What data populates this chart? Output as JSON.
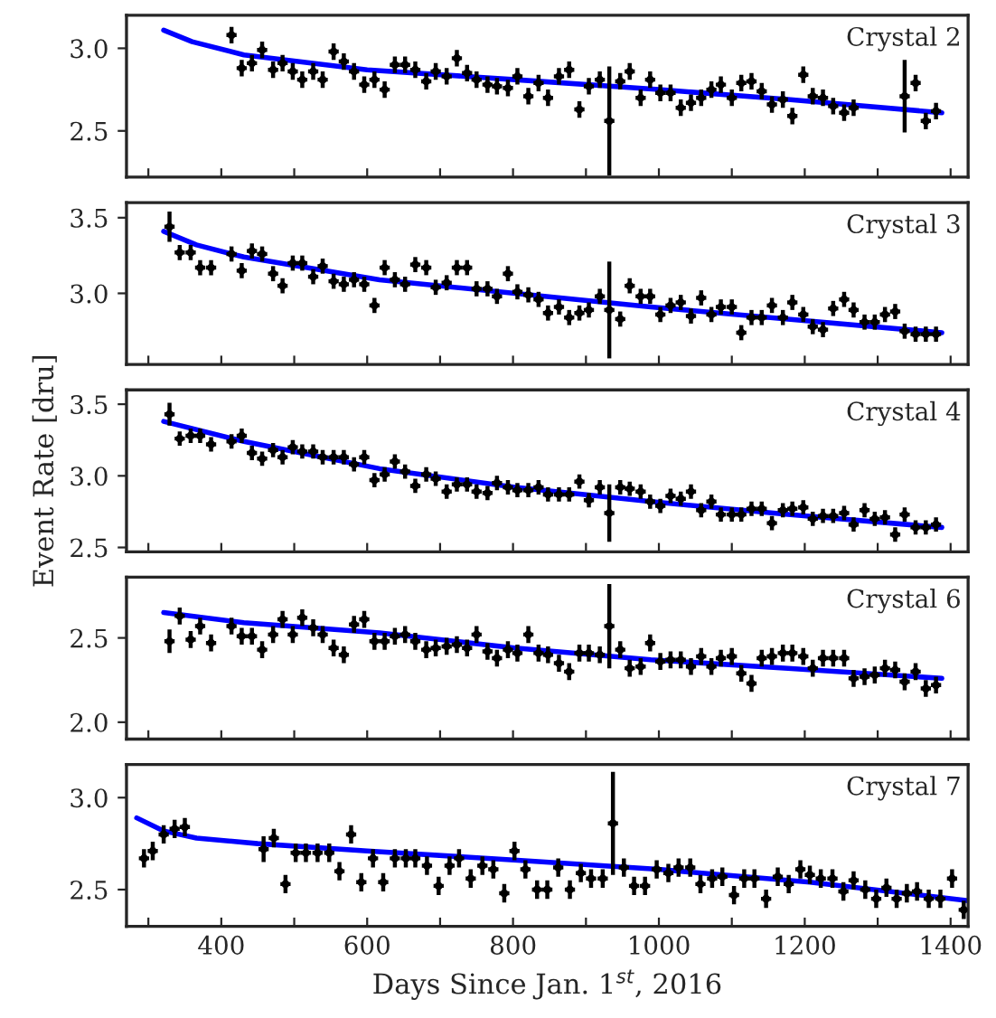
{
  "chart_data": [
    {
      "type": "scatter",
      "annotations": [
        "Crystal 2"
      ],
      "xlim": [
        270,
        1424
      ],
      "ylim": [
        2.22,
        3.2
      ],
      "yticks": [
        {
          "value": 2.5,
          "label": "2.5"
        },
        {
          "value": 3.0,
          "label": "3.0"
        }
      ],
      "xticks": [
        300,
        400,
        500,
        600,
        700,
        800,
        900,
        1000,
        1100,
        1200,
        1300,
        1400
      ],
      "tick_labels": "y",
      "grid": false,
      "series": [
        {
          "type": "scatter",
          "color": "#000000",
          "marker": "circle",
          "x": [
            414,
            428,
            442,
            456,
            471,
            484,
            498,
            511,
            526,
            539,
            554,
            568,
            582,
            596,
            610,
            624,
            638,
            652,
            666,
            681,
            694,
            709,
            723,
            737,
            750,
            765,
            778,
            793,
            806,
            821,
            835,
            848,
            863,
            877,
            891,
            904,
            919,
            932,
            947,
            960,
            975,
            988,
            1002,
            1016,
            1030,
            1044,
            1058,
            1072,
            1085,
            1100,
            1113,
            1127,
            1141,
            1155,
            1170,
            1183,
            1198,
            1211,
            1225,
            1239,
            1254,
            1267,
            1337,
            1352,
            1366,
            1380
          ],
          "values": [
            3.08,
            2.88,
            2.91,
            2.99,
            2.87,
            2.91,
            2.86,
            2.81,
            2.86,
            2.81,
            2.98,
            2.92,
            2.86,
            2.78,
            2.81,
            2.75,
            2.9,
            2.9,
            2.87,
            2.8,
            2.86,
            2.83,
            2.94,
            2.85,
            2.81,
            2.78,
            2.77,
            2.76,
            2.83,
            2.71,
            2.79,
            2.7,
            2.83,
            2.87,
            2.63,
            2.77,
            2.81,
            2.56,
            2.8,
            2.86,
            2.7,
            2.81,
            2.73,
            2.73,
            2.64,
            2.67,
            2.7,
            2.75,
            2.78,
            2.7,
            2.79,
            2.8,
            2.74,
            2.66,
            2.69,
            2.59,
            2.84,
            2.71,
            2.7,
            2.65,
            2.61,
            2.64,
            2.71,
            2.79,
            2.56,
            2.62
          ],
          "errors": [
            0.05,
            0.05,
            0.05,
            0.05,
            0.05,
            0.05,
            0.05,
            0.05,
            0.05,
            0.05,
            0.05,
            0.05,
            0.05,
            0.05,
            0.05,
            0.05,
            0.05,
            0.05,
            0.05,
            0.05,
            0.05,
            0.05,
            0.05,
            0.05,
            0.05,
            0.05,
            0.05,
            0.05,
            0.05,
            0.05,
            0.05,
            0.05,
            0.05,
            0.05,
            0.05,
            0.05,
            0.05,
            0.33,
            0.05,
            0.05,
            0.05,
            0.05,
            0.05,
            0.05,
            0.05,
            0.05,
            0.05,
            0.05,
            0.05,
            0.05,
            0.05,
            0.05,
            0.05,
            0.05,
            0.05,
            0.05,
            0.05,
            0.05,
            0.05,
            0.05,
            0.05,
            0.05,
            0.22,
            0.05,
            0.05,
            0.05
          ],
          "xerrors": [
            7,
            7,
            7,
            7,
            7,
            7,
            7,
            7,
            7,
            7,
            7,
            7,
            7,
            7,
            7,
            7,
            7,
            7,
            7,
            7,
            7,
            7,
            7,
            7,
            7,
            7,
            7,
            7,
            7,
            7,
            7,
            7,
            7,
            7,
            7,
            7,
            7,
            7,
            7,
            7,
            7,
            7,
            7,
            7,
            7,
            7,
            7,
            7,
            7,
            7,
            7,
            7,
            7,
            7,
            7,
            7,
            7,
            7,
            7,
            7,
            7,
            7,
            7,
            7,
            7,
            7
          ]
        },
        {
          "type": "line",
          "color": "#0000ff",
          "line_style": "solid",
          "x": [
            321,
            360,
            431,
            600,
            803,
            1000,
            1177,
            1388
          ],
          "values": [
            3.11,
            3.04,
            2.96,
            2.87,
            2.81,
            2.75,
            2.69,
            2.61
          ]
        }
      ]
    },
    {
      "type": "scatter",
      "annotations": [
        "Crystal 3"
      ],
      "xlim": [
        270,
        1424
      ],
      "ylim": [
        2.53,
        3.6
      ],
      "yticks": [
        {
          "value": 3.0,
          "label": "3.0"
        },
        {
          "value": 3.5,
          "label": "3.5"
        }
      ],
      "xticks": [
        300,
        400,
        500,
        600,
        700,
        800,
        900,
        1000,
        1100,
        1200,
        1300,
        1400
      ],
      "tick_labels": "y",
      "grid": false,
      "series": [
        {
          "type": "scatter",
          "color": "#000000",
          "marker": "circle",
          "x": [
            329,
            343,
            358,
            371,
            386,
            414,
            428,
            442,
            456,
            471,
            484,
            498,
            511,
            526,
            539,
            554,
            568,
            582,
            596,
            610,
            624,
            638,
            652,
            666,
            681,
            694,
            709,
            723,
            737,
            750,
            765,
            778,
            793,
            806,
            821,
            835,
            848,
            863,
            877,
            891,
            904,
            919,
            932,
            947,
            960,
            975,
            988,
            1002,
            1016,
            1030,
            1044,
            1058,
            1072,
            1085,
            1100,
            1113,
            1127,
            1141,
            1155,
            1170,
            1183,
            1198,
            1211,
            1225,
            1239,
            1254,
            1267,
            1282,
            1296,
            1310,
            1324,
            1337,
            1352,
            1366,
            1380
          ],
          "values": [
            3.44,
            3.27,
            3.27,
            3.17,
            3.17,
            3.26,
            3.15,
            3.28,
            3.26,
            3.13,
            3.05,
            3.2,
            3.2,
            3.11,
            3.18,
            3.08,
            3.06,
            3.09,
            3.06,
            2.92,
            3.17,
            3.09,
            3.06,
            3.19,
            3.17,
            3.04,
            3.07,
            3.17,
            3.17,
            3.03,
            3.03,
            2.98,
            3.13,
            3.01,
            2.99,
            2.96,
            2.87,
            2.91,
            2.84,
            2.87,
            2.89,
            2.98,
            2.89,
            2.83,
            3.05,
            2.98,
            2.98,
            2.86,
            2.92,
            2.94,
            2.85,
            2.97,
            2.86,
            2.91,
            2.91,
            2.74,
            2.84,
            2.84,
            2.92,
            2.84,
            2.94,
            2.86,
            2.78,
            2.76,
            2.9,
            2.96,
            2.89,
            2.81,
            2.81,
            2.86,
            2.88,
            2.75,
            2.73,
            2.73,
            2.73
          ],
          "errors": [
            0.1,
            0.05,
            0.05,
            0.05,
            0.05,
            0.05,
            0.05,
            0.05,
            0.05,
            0.05,
            0.05,
            0.05,
            0.05,
            0.05,
            0.05,
            0.05,
            0.05,
            0.05,
            0.05,
            0.05,
            0.05,
            0.05,
            0.05,
            0.05,
            0.05,
            0.05,
            0.05,
            0.05,
            0.05,
            0.05,
            0.05,
            0.05,
            0.05,
            0.05,
            0.05,
            0.05,
            0.05,
            0.05,
            0.05,
            0.05,
            0.05,
            0.05,
            0.32,
            0.05,
            0.05,
            0.05,
            0.05,
            0.05,
            0.05,
            0.05,
            0.05,
            0.05,
            0.05,
            0.05,
            0.05,
            0.05,
            0.05,
            0.05,
            0.05,
            0.05,
            0.05,
            0.05,
            0.05,
            0.05,
            0.05,
            0.05,
            0.05,
            0.05,
            0.05,
            0.05,
            0.05,
            0.05,
            0.05,
            0.05,
            0.05
          ],
          "xerrors": [
            7,
            7,
            7,
            7,
            7,
            7,
            7,
            7,
            7,
            7,
            7,
            7,
            7,
            7,
            7,
            7,
            7,
            7,
            7,
            7,
            7,
            7,
            7,
            7,
            7,
            7,
            7,
            7,
            7,
            7,
            7,
            7,
            7,
            7,
            7,
            7,
            7,
            7,
            7,
            7,
            7,
            7,
            7,
            7,
            7,
            7,
            7,
            7,
            7,
            7,
            7,
            7,
            7,
            7,
            7,
            7,
            7,
            7,
            7,
            7,
            7,
            7,
            7,
            7,
            7,
            7,
            7,
            7,
            7,
            7,
            7,
            7,
            7,
            7,
            7
          ]
        },
        {
          "type": "line",
          "color": "#0000ff",
          "line_style": "solid",
          "x": [
            321,
            366,
            431,
            617,
            803,
            989,
            1177,
            1388
          ],
          "values": [
            3.41,
            3.32,
            3.24,
            3.09,
            3.0,
            2.91,
            2.83,
            2.74
          ]
        }
      ]
    },
    {
      "type": "scatter",
      "annotations": [
        "Crystal 4"
      ],
      "ylabel": "Event Rate [dru]",
      "xlim": [
        270,
        1424
      ],
      "ylim": [
        2.47,
        3.6
      ],
      "yticks": [
        {
          "value": 2.5,
          "label": "2.5"
        },
        {
          "value": 3.0,
          "label": "3.0"
        },
        {
          "value": 3.5,
          "label": "3.5"
        }
      ],
      "xticks": [
        300,
        400,
        500,
        600,
        700,
        800,
        900,
        1000,
        1100,
        1200,
        1300,
        1400
      ],
      "tick_labels": "y",
      "grid": false,
      "series": [
        {
          "type": "scatter",
          "color": "#000000",
          "marker": "circle",
          "x": [
            329,
            343,
            358,
            371,
            386,
            414,
            428,
            442,
            456,
            471,
            484,
            498,
            511,
            526,
            539,
            554,
            568,
            582,
            596,
            610,
            624,
            638,
            652,
            666,
            681,
            694,
            709,
            723,
            737,
            750,
            765,
            778,
            793,
            806,
            821,
            835,
            848,
            863,
            877,
            891,
            904,
            919,
            932,
            947,
            960,
            975,
            988,
            1002,
            1016,
            1030,
            1044,
            1058,
            1072,
            1085,
            1100,
            1113,
            1127,
            1141,
            1155,
            1170,
            1183,
            1198,
            1211,
            1225,
            1239,
            1254,
            1267,
            1282,
            1296,
            1310,
            1324,
            1337,
            1352,
            1366,
            1380
          ],
          "values": [
            3.43,
            3.26,
            3.28,
            3.28,
            3.22,
            3.24,
            3.28,
            3.16,
            3.12,
            3.18,
            3.13,
            3.2,
            3.17,
            3.17,
            3.13,
            3.13,
            3.13,
            3.08,
            3.13,
            2.97,
            3.01,
            3.1,
            3.03,
            2.93,
            3.01,
            2.98,
            2.89,
            2.94,
            2.94,
            2.89,
            2.88,
            2.95,
            2.92,
            2.9,
            2.9,
            2.92,
            2.87,
            2.87,
            2.87,
            2.96,
            2.83,
            2.92,
            2.74,
            2.92,
            2.91,
            2.89,
            2.82,
            2.79,
            2.86,
            2.84,
            2.89,
            2.76,
            2.82,
            2.73,
            2.73,
            2.73,
            2.77,
            2.77,
            2.67,
            2.76,
            2.77,
            2.78,
            2.7,
            2.72,
            2.72,
            2.74,
            2.66,
            2.76,
            2.7,
            2.71,
            2.59,
            2.73,
            2.64,
            2.64,
            2.66
          ],
          "errors": [
            0.08,
            0.05,
            0.05,
            0.05,
            0.05,
            0.05,
            0.05,
            0.05,
            0.05,
            0.05,
            0.05,
            0.05,
            0.05,
            0.05,
            0.05,
            0.05,
            0.05,
            0.05,
            0.05,
            0.05,
            0.05,
            0.05,
            0.05,
            0.05,
            0.05,
            0.05,
            0.05,
            0.05,
            0.05,
            0.05,
            0.05,
            0.05,
            0.05,
            0.05,
            0.05,
            0.05,
            0.05,
            0.05,
            0.05,
            0.05,
            0.05,
            0.05,
            0.2,
            0.05,
            0.05,
            0.05,
            0.05,
            0.05,
            0.05,
            0.05,
            0.05,
            0.05,
            0.05,
            0.05,
            0.05,
            0.05,
            0.05,
            0.05,
            0.05,
            0.05,
            0.05,
            0.05,
            0.05,
            0.05,
            0.05,
            0.05,
            0.05,
            0.05,
            0.05,
            0.05,
            0.05,
            0.05,
            0.05,
            0.05,
            0.05
          ],
          "xerrors": [
            7,
            7,
            7,
            7,
            7,
            7,
            7,
            7,
            7,
            7,
            7,
            7,
            7,
            7,
            7,
            7,
            7,
            7,
            7,
            7,
            7,
            7,
            7,
            7,
            7,
            7,
            7,
            7,
            7,
            7,
            7,
            7,
            7,
            7,
            7,
            7,
            7,
            7,
            7,
            7,
            7,
            7,
            7,
            7,
            7,
            7,
            7,
            7,
            7,
            7,
            7,
            7,
            7,
            7,
            7,
            7,
            7,
            7,
            7,
            7,
            7,
            7,
            7,
            7,
            7,
            7,
            7,
            7,
            7,
            7,
            7,
            7,
            7,
            7,
            7
          ]
        },
        {
          "type": "line",
          "color": "#0000ff",
          "line_style": "solid",
          "x": [
            321,
            431,
            617,
            803,
            989,
            1177,
            1388
          ],
          "values": [
            3.38,
            3.24,
            3.05,
            2.92,
            2.82,
            2.73,
            2.64
          ]
        }
      ]
    },
    {
      "type": "scatter",
      "annotations": [
        "Crystal 6"
      ],
      "xlim": [
        270,
        1424
      ],
      "ylim": [
        1.9,
        2.86
      ],
      "yticks": [
        {
          "value": 2.0,
          "label": "2.0"
        },
        {
          "value": 2.5,
          "label": "2.5"
        }
      ],
      "xticks": [
        300,
        400,
        500,
        600,
        700,
        800,
        900,
        1000,
        1100,
        1200,
        1300,
        1400
      ],
      "tick_labels": "y",
      "grid": false,
      "series": [
        {
          "type": "scatter",
          "color": "#000000",
          "marker": "circle",
          "x": [
            329,
            343,
            358,
            371,
            386,
            414,
            428,
            442,
            456,
            471,
            484,
            498,
            511,
            526,
            539,
            554,
            568,
            582,
            596,
            610,
            624,
            638,
            652,
            666,
            681,
            694,
            709,
            723,
            737,
            750,
            765,
            778,
            793,
            806,
            821,
            835,
            848,
            863,
            877,
            891,
            904,
            919,
            932,
            947,
            960,
            975,
            988,
            1002,
            1016,
            1030,
            1044,
            1058,
            1072,
            1085,
            1100,
            1113,
            1127,
            1141,
            1155,
            1170,
            1183,
            1198,
            1211,
            1225,
            1239,
            1254,
            1267,
            1282,
            1296,
            1310,
            1324,
            1337,
            1352,
            1366,
            1380
          ],
          "values": [
            2.48,
            2.63,
            2.49,
            2.57,
            2.47,
            2.57,
            2.51,
            2.51,
            2.43,
            2.52,
            2.61,
            2.52,
            2.62,
            2.56,
            2.52,
            2.44,
            2.4,
            2.58,
            2.61,
            2.48,
            2.48,
            2.51,
            2.52,
            2.48,
            2.43,
            2.44,
            2.45,
            2.46,
            2.44,
            2.52,
            2.42,
            2.38,
            2.43,
            2.41,
            2.52,
            2.41,
            2.4,
            2.35,
            2.3,
            2.41,
            2.41,
            2.4,
            2.57,
            2.43,
            2.32,
            2.33,
            2.47,
            2.36,
            2.37,
            2.37,
            2.33,
            2.39,
            2.33,
            2.38,
            2.39,
            2.29,
            2.23,
            2.38,
            2.39,
            2.41,
            2.41,
            2.39,
            2.32,
            2.38,
            2.38,
            2.38,
            2.26,
            2.27,
            2.28,
            2.32,
            2.31,
            2.24,
            2.3,
            2.2,
            2.22
          ],
          "errors": [
            0.07,
            0.05,
            0.05,
            0.05,
            0.05,
            0.05,
            0.05,
            0.05,
            0.05,
            0.05,
            0.05,
            0.05,
            0.05,
            0.05,
            0.05,
            0.05,
            0.05,
            0.05,
            0.05,
            0.05,
            0.05,
            0.05,
            0.05,
            0.05,
            0.05,
            0.05,
            0.05,
            0.05,
            0.05,
            0.05,
            0.05,
            0.05,
            0.05,
            0.05,
            0.05,
            0.05,
            0.05,
            0.05,
            0.05,
            0.05,
            0.05,
            0.05,
            0.25,
            0.05,
            0.05,
            0.05,
            0.05,
            0.05,
            0.05,
            0.05,
            0.05,
            0.05,
            0.05,
            0.05,
            0.05,
            0.05,
            0.05,
            0.05,
            0.05,
            0.05,
            0.05,
            0.05,
            0.05,
            0.05,
            0.05,
            0.05,
            0.05,
            0.05,
            0.05,
            0.05,
            0.05,
            0.05,
            0.05,
            0.05,
            0.05
          ],
          "xerrors": [
            7,
            7,
            7,
            7,
            7,
            7,
            7,
            7,
            7,
            7,
            7,
            7,
            7,
            7,
            7,
            7,
            7,
            7,
            7,
            7,
            7,
            7,
            7,
            7,
            7,
            7,
            7,
            7,
            7,
            7,
            7,
            7,
            7,
            7,
            7,
            7,
            7,
            7,
            7,
            7,
            7,
            7,
            7,
            7,
            7,
            7,
            7,
            7,
            7,
            7,
            7,
            7,
            7,
            7,
            7,
            7,
            7,
            7,
            7,
            7,
            7,
            7,
            7,
            7,
            7,
            7,
            7,
            7,
            7,
            7,
            7,
            7,
            7,
            7,
            7
          ]
        },
        {
          "type": "line",
          "color": "#0000ff",
          "line_style": "solid",
          "x": [
            321,
            431,
            617,
            803,
            989,
            1177,
            1388
          ],
          "values": [
            2.65,
            2.59,
            2.53,
            2.44,
            2.37,
            2.32,
            2.26
          ]
        }
      ]
    },
    {
      "type": "scatter",
      "annotations": [
        "Crystal 7"
      ],
      "xlabel": "Days Since Jan. 1$^{st}$, 2016",
      "xlim": [
        270,
        1424
      ],
      "ylim": [
        2.3,
        3.18
      ],
      "yticks": [
        {
          "value": 2.5,
          "label": "2.5"
        },
        {
          "value": 3.0,
          "label": "3.0"
        }
      ],
      "xticks": [
        {
          "value": 300,
          "label": null
        },
        {
          "value": 400,
          "label": "400"
        },
        {
          "value": 500,
          "label": null
        },
        {
          "value": 600,
          "label": "600"
        },
        {
          "value": 700,
          "label": null
        },
        {
          "value": 800,
          "label": "800"
        },
        {
          "value": 900,
          "label": null
        },
        {
          "value": 1000,
          "label": "1000"
        },
        {
          "value": 1100,
          "label": null
        },
        {
          "value": 1200,
          "label": "1200"
        },
        {
          "value": 1300,
          "label": null
        },
        {
          "value": 1400,
          "label": "1400"
        }
      ],
      "grid": false,
      "series": [
        {
          "type": "scatter",
          "color": "#000000",
          "marker": "circle",
          "x": [
            294,
            306,
            321,
            336,
            350,
            458,
            472,
            488,
            502,
            516,
            532,
            548,
            562,
            578,
            592,
            608,
            622,
            638,
            653,
            666,
            682,
            698,
            713,
            726,
            742,
            758,
            773,
            788,
            802,
            817,
            833,
            847,
            862,
            878,
            893,
            907,
            923,
            937,
            952,
            966,
            981,
            997,
            1013,
            1027,
            1043,
            1057,
            1073,
            1087,
            1103,
            1117,
            1131,
            1147,
            1163,
            1178,
            1194,
            1207,
            1222,
            1238,
            1253,
            1267,
            1283,
            1298,
            1312,
            1326,
            1340,
            1354,
            1370,
            1386,
            1402,
            1418
          ],
          "values": [
            2.67,
            2.71,
            2.8,
            2.83,
            2.84,
            2.72,
            2.78,
            2.53,
            2.7,
            2.7,
            2.7,
            2.7,
            2.6,
            2.8,
            2.54,
            2.67,
            2.54,
            2.67,
            2.67,
            2.67,
            2.63,
            2.52,
            2.63,
            2.67,
            2.56,
            2.63,
            2.61,
            2.48,
            2.71,
            2.61,
            2.5,
            2.5,
            2.62,
            2.5,
            2.59,
            2.56,
            2.56,
            2.86,
            2.62,
            2.52,
            2.52,
            2.61,
            2.59,
            2.62,
            2.62,
            2.53,
            2.56,
            2.57,
            2.47,
            2.56,
            2.56,
            2.45,
            2.57,
            2.53,
            2.61,
            2.58,
            2.56,
            2.56,
            2.49,
            2.55,
            2.5,
            2.45,
            2.51,
            2.45,
            2.48,
            2.49,
            2.45,
            2.45,
            2.56,
            2.39
          ],
          "errors": [
            0.05,
            0.05,
            0.05,
            0.05,
            0.05,
            0.07,
            0.05,
            0.05,
            0.05,
            0.05,
            0.05,
            0.05,
            0.05,
            0.05,
            0.05,
            0.05,
            0.05,
            0.05,
            0.05,
            0.05,
            0.05,
            0.05,
            0.05,
            0.05,
            0.05,
            0.05,
            0.05,
            0.05,
            0.05,
            0.05,
            0.05,
            0.05,
            0.05,
            0.05,
            0.05,
            0.05,
            0.05,
            0.28,
            0.05,
            0.05,
            0.05,
            0.05,
            0.05,
            0.05,
            0.05,
            0.05,
            0.05,
            0.05,
            0.05,
            0.05,
            0.05,
            0.05,
            0.05,
            0.05,
            0.05,
            0.05,
            0.05,
            0.05,
            0.05,
            0.05,
            0.05,
            0.05,
            0.05,
            0.05,
            0.05,
            0.05,
            0.05,
            0.05,
            0.05,
            0.05
          ],
          "xerrors": [
            7,
            7,
            7,
            7,
            7,
            7,
            7,
            7,
            7,
            7,
            7,
            7,
            7,
            7,
            7,
            7,
            7,
            7,
            7,
            7,
            7,
            7,
            7,
            7,
            7,
            7,
            7,
            7,
            7,
            7,
            7,
            7,
            7,
            7,
            7,
            7,
            7,
            7,
            7,
            7,
            7,
            7,
            7,
            7,
            7,
            7,
            7,
            7,
            7,
            7,
            7,
            7,
            7,
            7,
            7,
            7,
            7,
            7,
            7,
            7,
            7,
            7,
            7,
            7,
            7,
            7,
            7,
            7,
            7,
            7
          ]
        },
        {
          "type": "line",
          "color": "#0000ff",
          "line_style": "solid",
          "x": [
            284,
            320,
            366,
            450,
            600,
            806,
            999,
            1207,
            1424
          ],
          "values": [
            2.89,
            2.82,
            2.78,
            2.75,
            2.71,
            2.66,
            2.61,
            2.54,
            2.44
          ]
        }
      ]
    }
  ]
}
